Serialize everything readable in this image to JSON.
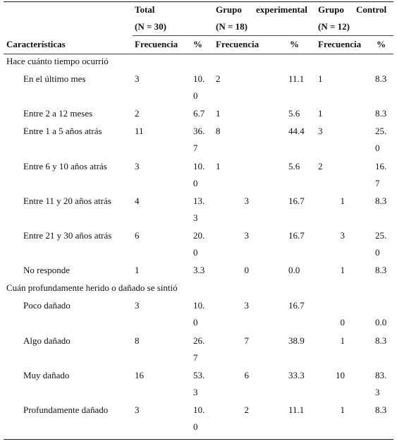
{
  "header": {
    "characteristics": "Características",
    "groups": [
      {
        "name": "Total",
        "n": "(N = 30)"
      },
      {
        "name_left": "Grupo",
        "name_right": "experimental",
        "n": "(N = 18)"
      },
      {
        "name_left": "Grupo",
        "name_right": "Control",
        "n": "(N = 12)"
      }
    ],
    "freq": "Frecuencia",
    "pct": "%"
  },
  "sections": [
    {
      "title": "Hace cuánto tiempo ocurrió",
      "rows": [
        {
          "label": "En el último mes",
          "total_f": "3",
          "total_p": [
            "10.",
            "0"
          ],
          "exp_f": "2",
          "exp_p": "11.1",
          "ctl_f": "1",
          "ctl_p": [
            "8.3"
          ]
        },
        {
          "label": "Entre 2 a 12 meses",
          "total_f": "2",
          "total_p": [
            "6.7"
          ],
          "exp_f": "1",
          "exp_p": "5.6",
          "ctl_f": "1",
          "ctl_p": [
            "8.3"
          ]
        },
        {
          "label": "Entre 1 a 5 años atrás",
          "total_f": "11",
          "total_p": [
            "36.",
            "7"
          ],
          "exp_f": "8",
          "exp_p": "44.4",
          "ctl_f": "3",
          "ctl_p": [
            "25.",
            "0"
          ]
        },
        {
          "label": "Entre 6 y 10 años atrás",
          "total_f": "3",
          "total_p": [
            "10.",
            "0"
          ],
          "exp_f": "1",
          "exp_p": "5.6",
          "ctl_f": "2",
          "ctl_p": [
            "16.",
            "7"
          ]
        },
        {
          "label": "Entre 11 y 20 años atrás",
          "total_f": "4",
          "total_p": [
            "13.",
            "3"
          ],
          "exp_f": "3",
          "exp_p": "16.7",
          "ctl_f": "1",
          "ctl_p": [
            "8.3"
          ]
        },
        {
          "label": "Entre 21 y 30 años atrás",
          "total_f": "6",
          "total_p": [
            "20.",
            "0"
          ],
          "exp_f": "3",
          "exp_p": "16.7",
          "ctl_f": "3",
          "ctl_p": [
            "25.",
            "0"
          ]
        },
        {
          "label": "No responde",
          "total_f": "1",
          "total_p": [
            "3.3"
          ],
          "exp_f": "0",
          "exp_p": "0.0",
          "ctl_f": "1",
          "ctl_p": [
            "8.3"
          ]
        }
      ]
    },
    {
      "title": "Cuán profundamente herido o dañado se sintió",
      "rows": [
        {
          "label": "Poco dañado",
          "total_f": "3",
          "total_p": [
            "10.",
            "0"
          ],
          "exp_f": "3",
          "exp_p": "16.7",
          "ctl_f": "0",
          "ctl_p": [
            "0.0"
          ]
        },
        {
          "label": "Algo dañado",
          "total_f": "8",
          "total_p": [
            "26.",
            "7"
          ],
          "exp_f": "7",
          "exp_p": "38.9",
          "ctl_f": "1",
          "ctl_p": [
            "8.3"
          ]
        },
        {
          "label": "Muy dañado",
          "total_f": "16",
          "total_p": [
            "53.",
            "3"
          ],
          "exp_f": "6",
          "exp_p": "33.3",
          "ctl_f": "10",
          "ctl_p": [
            "83.",
            "3"
          ]
        },
        {
          "label": "Profundamente dañado",
          "total_f": "3",
          "total_p": [
            "10.",
            "0"
          ],
          "exp_f": "2",
          "exp_p": "11.1",
          "ctl_f": "1",
          "ctl_p": [
            "8.3"
          ]
        }
      ]
    }
  ]
}
